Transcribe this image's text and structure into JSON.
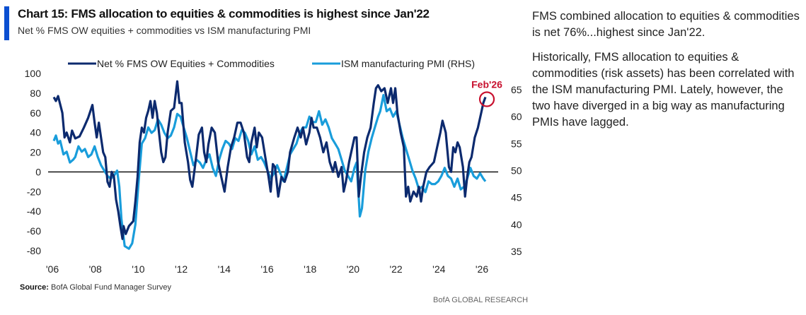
{
  "header": {
    "title": "Chart 15: FMS allocation to equities & commodities is highest since Jan'22",
    "subtitle": "Net % FMS OW equities + commodities vs ISM manufacturing PMI"
  },
  "footer": {
    "source_label": "Source:",
    "source_text": " BofA Global Fund Manager Survey",
    "brand": "BofA GLOBAL RESEARCH"
  },
  "commentary": {
    "paragraphs": [
      "FMS combined allocation to equities & commodities is net 76%...highest since Jan'22.",
      "Historically, FMS allocation to equities & commodities (risk assets) has been correlated with the ISM manufacturing PMI. Lately, however, the two have diverged in a big way as manufacturing PMIs have lagged."
    ]
  },
  "colors": {
    "net_series": "#0c2a6e",
    "ism_series": "#199ddb",
    "annotation": "#c8102e",
    "accent": "#0b4fd1"
  },
  "chart_data": {
    "type": "line",
    "title": "Chart 15: FMS allocation to equities & commodities is highest since Jan'22",
    "subtitle": "Net % FMS OW equities + commodities vs ISM manufacturing PMI",
    "xlabel": "",
    "ylabel": "",
    "xlim": [
      2006,
      2026.5
    ],
    "x_ticks": [
      2006,
      2008,
      2010,
      2012,
      2014,
      2016,
      2018,
      2020,
      2022,
      2024,
      2026
    ],
    "x_tick_labels": [
      "'06",
      "'08",
      "'10",
      "'12",
      "'14",
      "'16",
      "'18",
      "'20",
      "'22",
      "'24",
      "'26"
    ],
    "ylim_left": [
      -80,
      100
    ],
    "y_ticks_left": [
      100,
      80,
      60,
      40,
      20,
      0,
      -20,
      -40,
      -60,
      -80
    ],
    "ylim_right": [
      35,
      65
    ],
    "y_ticks_right": [
      65,
      60,
      55,
      50,
      45,
      40,
      35
    ],
    "zero_line": true,
    "grid": false,
    "legend_position": "top",
    "annotation": {
      "label": "Feb'26",
      "x": 2026.1,
      "y": 76,
      "series": "Net % FMS OW Equities + Commodities",
      "style": "circle"
    },
    "series": [
      {
        "name": "Net % FMS OW Equities + Commodities",
        "axis": "left",
        "x": [
          2006.0,
          2006.1,
          2006.2,
          2006.4,
          2006.5,
          2006.6,
          2006.75,
          2006.85,
          2007.0,
          2007.2,
          2007.4,
          2007.6,
          2007.8,
          2007.9,
          2008.0,
          2008.1,
          2008.3,
          2008.4,
          2008.5,
          2008.6,
          2008.7,
          2008.8,
          2008.9,
          2009.0,
          2009.1,
          2009.2,
          2009.25,
          2009.35,
          2009.5,
          2009.7,
          2009.8,
          2009.9,
          2010.0,
          2010.1,
          2010.2,
          2010.3,
          2010.4,
          2010.5,
          2010.6,
          2010.7,
          2010.8,
          2010.9,
          2011.0,
          2011.1,
          2011.2,
          2011.3,
          2011.45,
          2011.6,
          2011.75,
          2011.85,
          2011.95,
          2012.1,
          2012.25,
          2012.35,
          2012.45,
          2012.6,
          2012.75,
          2012.9,
          2013.0,
          2013.1,
          2013.2,
          2013.35,
          2013.5,
          2013.65,
          2013.8,
          2013.95,
          2014.1,
          2014.25,
          2014.4,
          2014.55,
          2014.7,
          2014.85,
          2015.0,
          2015.1,
          2015.2,
          2015.35,
          2015.45,
          2015.55,
          2015.7,
          2015.85,
          2016.0,
          2016.1,
          2016.2,
          2016.3,
          2016.45,
          2016.6,
          2016.75,
          2016.9,
          2017.0,
          2017.2,
          2017.35,
          2017.5,
          2017.6,
          2017.75,
          2017.9,
          2018.0,
          2018.1,
          2018.25,
          2018.4,
          2018.55,
          2018.7,
          2018.85,
          2019.0,
          2019.1,
          2019.25,
          2019.4,
          2019.5,
          2019.6,
          2019.75,
          2019.85,
          2020.0,
          2020.1,
          2020.2,
          2020.3,
          2020.45,
          2020.6,
          2020.75,
          2020.9,
          2021.0,
          2021.1,
          2021.25,
          2021.4,
          2021.55,
          2021.7,
          2021.8,
          2021.9,
          2022.0,
          2022.15,
          2022.3,
          2022.4,
          2022.5,
          2022.6,
          2022.75,
          2022.9,
          2023.0,
          2023.1,
          2023.2,
          2023.35,
          2023.5,
          2023.7,
          2023.85,
          2024.0,
          2024.1,
          2024.25,
          2024.4,
          2024.5,
          2024.6,
          2024.7,
          2024.8,
          2024.9,
          2025.05,
          2025.15,
          2025.25,
          2025.35,
          2025.45,
          2025.6,
          2025.75,
          2025.9,
          2026.0,
          2026.1
        ],
        "values": [
          76,
          72,
          77,
          60,
          35,
          40,
          30,
          42,
          34,
          36,
          45,
          55,
          68,
          50,
          35,
          50,
          20,
          15,
          -10,
          -15,
          0,
          -5,
          -28,
          -40,
          -55,
          -68,
          -55,
          -63,
          -55,
          -50,
          -30,
          -5,
          30,
          45,
          40,
          55,
          62,
          72,
          55,
          72,
          60,
          40,
          20,
          10,
          15,
          40,
          62,
          65,
          92,
          70,
          70,
          30,
          10,
          -8,
          -15,
          10,
          38,
          45,
          20,
          10,
          28,
          45,
          40,
          10,
          -5,
          -20,
          5,
          25,
          35,
          50,
          50,
          40,
          15,
          10,
          30,
          45,
          25,
          40,
          35,
          15,
          -5,
          -20,
          8,
          5,
          -25,
          -5,
          -10,
          0,
          20,
          35,
          45,
          35,
          45,
          28,
          40,
          55,
          45,
          45,
          35,
          20,
          30,
          10,
          0,
          10,
          -5,
          5,
          -20,
          -10,
          10,
          20,
          35,
          35,
          -25,
          -5,
          20,
          35,
          45,
          70,
          85,
          88,
          82,
          85,
          70,
          85,
          70,
          85,
          60,
          40,
          25,
          -25,
          -15,
          -30,
          -20,
          -25,
          -15,
          -30,
          -15,
          0,
          5,
          10,
          25,
          40,
          52,
          40,
          5,
          0,
          25,
          20,
          30,
          25,
          5,
          -25,
          -5,
          10,
          15,
          35,
          45,
          60,
          70,
          76
        ]
      },
      {
        "name": "ISM manufacturing PMI (RHS)",
        "axis": "right",
        "x": [
          2006.0,
          2006.1,
          2006.2,
          2006.3,
          2006.45,
          2006.6,
          2006.75,
          2006.9,
          2007.0,
          2007.15,
          2007.3,
          2007.45,
          2007.6,
          2007.75,
          2007.9,
          2008.05,
          2008.2,
          2008.35,
          2008.5,
          2008.65,
          2008.8,
          2008.95,
          2009.05,
          2009.15,
          2009.3,
          2009.5,
          2009.65,
          2009.8,
          2009.95,
          2010.1,
          2010.25,
          2010.4,
          2010.55,
          2010.7,
          2010.85,
          2011.0,
          2011.15,
          2011.3,
          2011.45,
          2011.6,
          2011.75,
          2011.9,
          2012.05,
          2012.2,
          2012.35,
          2012.5,
          2012.65,
          2012.8,
          2012.95,
          2013.1,
          2013.25,
          2013.4,
          2013.55,
          2013.7,
          2013.85,
          2014.0,
          2014.15,
          2014.3,
          2014.45,
          2014.6,
          2014.75,
          2014.9,
          2015.05,
          2015.2,
          2015.35,
          2015.5,
          2015.65,
          2015.8,
          2015.95,
          2016.1,
          2016.25,
          2016.4,
          2016.55,
          2016.7,
          2016.85,
          2017.0,
          2017.15,
          2017.3,
          2017.45,
          2017.6,
          2017.75,
          2017.9,
          2018.05,
          2018.2,
          2018.35,
          2018.5,
          2018.65,
          2018.8,
          2018.95,
          2019.1,
          2019.25,
          2019.4,
          2019.55,
          2019.7,
          2019.85,
          2020.0,
          2020.1,
          2020.25,
          2020.35,
          2020.5,
          2020.65,
          2020.8,
          2020.95,
          2021.1,
          2021.2,
          2021.35,
          2021.5,
          2021.65,
          2021.8,
          2021.95,
          2022.1,
          2022.25,
          2022.4,
          2022.55,
          2022.7,
          2022.85,
          2023.0,
          2023.15,
          2023.3,
          2023.45,
          2023.6,
          2023.75,
          2023.9,
          2024.05,
          2024.2,
          2024.35,
          2024.5,
          2024.65,
          2024.8,
          2024.95,
          2025.1,
          2025.25,
          2025.4,
          2025.55,
          2025.7,
          2025.85,
          2026.0,
          2026.1
        ],
        "values": [
          55.5,
          56.5,
          55,
          55.5,
          53,
          53.5,
          51.5,
          52,
          52.5,
          54.5,
          53.5,
          54,
          52.5,
          53,
          54.5,
          52.5,
          51,
          50,
          49,
          48.5,
          49,
          50,
          47,
          41,
          36,
          35.5,
          36.5,
          40,
          48,
          55,
          56,
          58,
          57,
          57.5,
          59.5,
          58.5,
          57,
          56,
          56.5,
          58,
          60.5,
          60,
          58,
          56,
          53.5,
          51,
          52,
          51.5,
          50.5,
          52,
          53,
          50.5,
          49,
          52,
          54,
          55.5,
          55,
          54,
          56,
          55.5,
          57.5,
          57,
          55.5,
          53,
          54.5,
          52,
          52.5,
          51.5,
          50,
          48.5,
          49.5,
          51,
          49.5,
          48,
          50.5,
          53,
          54,
          55,
          57,
          58,
          58,
          60,
          59,
          59,
          61,
          58.5,
          59.5,
          58,
          56,
          55,
          54,
          52,
          50,
          49,
          48,
          50.5,
          51.5,
          41.5,
          43,
          50,
          53.5,
          56,
          58,
          60,
          61,
          64,
          61,
          61.5,
          60,
          61,
          58.5,
          56,
          54,
          52,
          50,
          48.5,
          46.5,
          47,
          46,
          48,
          47.5,
          47.5,
          48,
          49,
          50.5,
          49,
          48.5,
          47,
          48.5,
          46.5,
          47,
          48.5,
          50.5,
          49,
          48.5,
          49.5,
          48.5,
          48
        ]
      }
    ]
  }
}
